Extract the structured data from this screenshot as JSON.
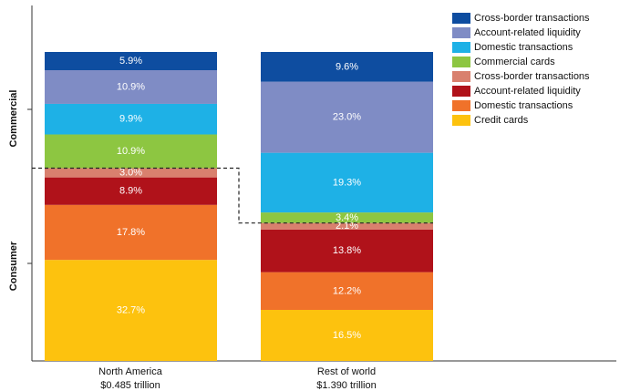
{
  "chart_data": {
    "type": "bar",
    "stacked": true,
    "unit": "%",
    "categories": [
      {
        "name": "North America",
        "sublabel": "$0.485 trillion"
      },
      {
        "name": "Rest of world",
        "sublabel": "$1.390 trillion"
      }
    ],
    "series": [
      {
        "name": "Credit cards",
        "group": "Consumer",
        "color": "#FDC20E",
        "values": [
          32.7,
          16.5
        ],
        "labels": [
          "32.7%",
          "16.5%"
        ]
      },
      {
        "name": "Domestic transactions",
        "group": "Consumer",
        "color": "#F0722A",
        "values": [
          17.8,
          12.2
        ],
        "labels": [
          "17.8%",
          "12.2%"
        ]
      },
      {
        "name": "Account-related liquidity",
        "group": "Consumer",
        "color": "#B0121A",
        "values": [
          8.9,
          13.8
        ],
        "labels": [
          "8.9%",
          "13.8%"
        ]
      },
      {
        "name": "Cross-border transactions",
        "group": "Consumer",
        "color": "#D9806E",
        "values": [
          3.0,
          2.1
        ],
        "labels": [
          "3.0%",
          "2.1%"
        ]
      },
      {
        "name": "Commercial cards",
        "group": "Commercial",
        "color": "#8DC641",
        "values": [
          10.9,
          3.4
        ],
        "labels": [
          "10.9%",
          "3.4%"
        ]
      },
      {
        "name": "Domestic transactions",
        "group": "Commercial",
        "color": "#1EB1E6",
        "values": [
          9.9,
          19.3
        ],
        "labels": [
          "9.9%",
          "19.3%"
        ]
      },
      {
        "name": "Account-related liquidity",
        "group": "Commercial",
        "color": "#7F8CC5",
        "values": [
          10.9,
          23.0
        ],
        "labels": [
          "10.9%",
          "23.0%"
        ]
      },
      {
        "name": "Cross-border transactions",
        "group": "Commercial",
        "color": "#0E4DA0",
        "values": [
          5.9,
          9.6
        ],
        "labels": [
          "5.9%",
          "9.6%"
        ]
      }
    ],
    "legend_order": [
      7,
      6,
      5,
      4,
      3,
      2,
      1,
      0
    ],
    "group_labels": [
      "Commercial",
      "Consumer"
    ],
    "legend_position": "top-right",
    "grid": false,
    "ylim": [
      0,
      100
    ]
  }
}
